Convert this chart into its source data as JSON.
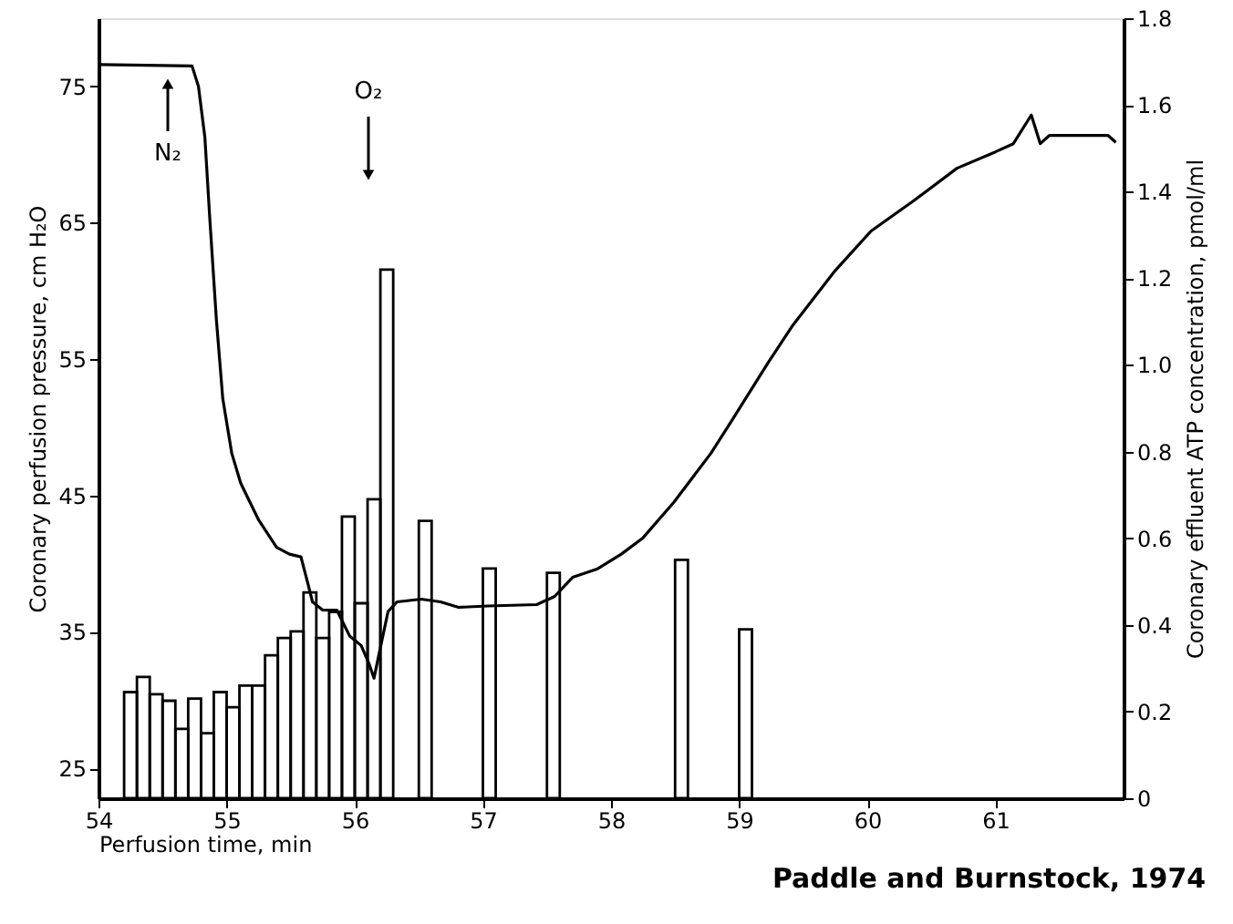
{
  "chart_data": {
    "type": "line",
    "xlabel": "Perfusion time, min",
    "ylabel": "Coronary perfusion pressure, cm H₂O",
    "y2label": "Coronary effluent ATP concentration, pmol/ml",
    "xlim": [
      54,
      62
    ],
    "xticks": [
      54,
      55,
      56,
      57,
      58,
      59,
      60,
      61
    ],
    "ylim": [
      22.8,
      80
    ],
    "yticks": [
      25,
      35,
      45,
      55,
      65,
      75
    ],
    "y2lim": [
      0,
      1.8
    ],
    "y2ticks": [
      0,
      0.2,
      0.4,
      0.6,
      0.8,
      {
        "value": 1,
        "label": "1.0"
      },
      1.2,
      1.4,
      1.6,
      1.8
    ],
    "series": [
      {
        "type": "histogram",
        "axis": "y2",
        "color": "#000000",
        "bins": [
          54.2,
          54.3,
          54.4,
          54.5,
          54.6,
          54.7,
          54.8,
          54.9,
          55.0,
          55.1,
          55.2,
          55.3,
          55.4,
          55.5,
          55.6,
          55.7,
          55.8,
          55.9,
          56.0,
          56.1,
          56.2,
          56.3,
          56.5,
          56.6,
          57.0,
          57.1,
          57.5,
          57.6,
          58.5,
          58.6,
          59.0,
          59.1
        ],
        "values": [
          0.245,
          0.28,
          0.24,
          0.225,
          0.16,
          0.23,
          0.15,
          0.245,
          0.21,
          0.26,
          0.26,
          0.33,
          0.37,
          0.385,
          0.475,
          0.37,
          0.43,
          0.65,
          0.45,
          0.69,
          1.22,
          null,
          0.64,
          null,
          0.53,
          null,
          0.52,
          null,
          0.55,
          null,
          0.39
        ]
      },
      {
        "axis": "y",
        "color": "#000000",
        "x": [
          54.02,
          54.73,
          54.78,
          54.83,
          54.87,
          54.92,
          54.97,
          55.04,
          55.11,
          55.25,
          55.39,
          55.49,
          55.58,
          55.63,
          55.67,
          55.75,
          55.86,
          55.96,
          56.05,
          56.11,
          56.15,
          56.19,
          56.26,
          56.33,
          56.52,
          56.67,
          56.81,
          57.04,
          57.42,
          57.56,
          57.7,
          57.89,
          58.08,
          58.25,
          58.49,
          58.78,
          58.95,
          59.23,
          59.42,
          59.75,
          60.03,
          60.36,
          60.7,
          61.0,
          61.14,
          61.28,
          61.35,
          61.42,
          61.88,
          61.94
        ],
        "values": [
          76.6,
          76.5,
          75,
          71.3,
          65.1,
          57.9,
          52.1,
          48.1,
          45.9,
          43.2,
          41.2,
          40.7,
          40.5,
          38.7,
          37.2,
          36.6,
          36.6,
          34.7,
          34.0,
          32.7,
          31.6,
          33.4,
          36.5,
          37.2,
          37.4,
          37.2,
          36.8,
          36.9,
          37.0,
          37.6,
          39.0,
          39.6,
          40.7,
          41.9,
          44.5,
          48.1,
          50.6,
          54.8,
          57.5,
          61.5,
          64.4,
          66.6,
          69.0,
          70.2,
          70.8,
          72.9,
          70.8,
          71.4,
          71.4,
          70.9
        ]
      }
    ],
    "annotations": [
      "N₂",
      "O₂",
      "Paddle and Burnstock, 1974"
    ]
  }
}
